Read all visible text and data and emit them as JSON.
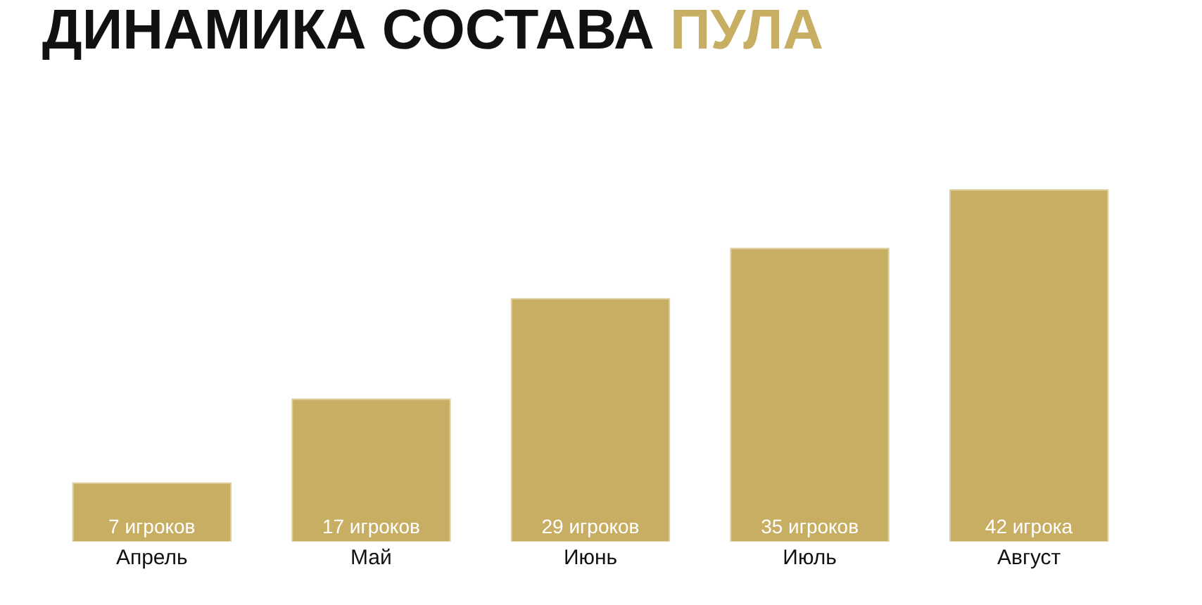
{
  "chart_data": {
    "type": "bar",
    "title": "ДИНАМИКА СОСТАВА ПУЛА",
    "categories": [
      "Апрель",
      "Май",
      "Июнь",
      "Июль",
      "Август"
    ],
    "values": [
      7,
      17,
      29,
      35,
      42
    ],
    "value_labels": [
      "7 игроков",
      "17 игроков",
      "29 игроков",
      "35 игроков",
      "42 игрока"
    ],
    "color": "#c8ae62"
  }
}
